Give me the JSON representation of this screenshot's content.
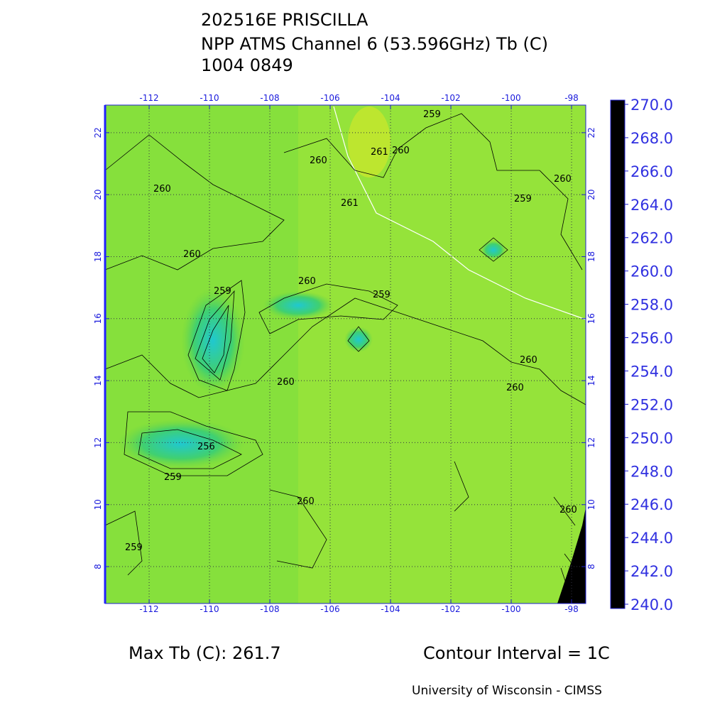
{
  "title": [
    "202516E PRISCILLA",
    "NPP ATMS Channel 6 (53.596GHz) Tb (C)",
    "1004 0849"
  ],
  "map": {
    "xlim": [
      -113.46,
      -97.53
    ],
    "ylim": [
      6.81,
      22.89
    ],
    "xticks": [
      -112,
      -110,
      -108,
      -106,
      -104,
      -102,
      -100,
      -98
    ],
    "yticks": [
      8,
      10,
      12,
      14,
      16,
      18,
      20,
      22
    ],
    "grid": true,
    "contour_labels": [
      "259",
      "261",
      "260",
      "260",
      "260",
      "261",
      "259",
      "260",
      "260",
      "259",
      "260",
      "259",
      "260",
      "260",
      "260",
      "256",
      "259",
      "260",
      "260",
      "259"
    ]
  },
  "colorbar": {
    "lim": [
      240,
      270
    ],
    "ticks": [
      {
        "value": 240,
        "label": "240.0"
      },
      {
        "value": 242,
        "label": "242.0"
      },
      {
        "value": 244,
        "label": "244.0"
      },
      {
        "value": 246,
        "label": "246.0"
      },
      {
        "value": 248,
        "label": "248.0"
      },
      {
        "value": 250,
        "label": "250.0"
      },
      {
        "value": 252,
        "label": "252.0"
      },
      {
        "value": 254,
        "label": "254.0"
      },
      {
        "value": 256,
        "label": "256.0"
      },
      {
        "value": 258,
        "label": "258.0"
      },
      {
        "value": 260,
        "label": "260.0"
      },
      {
        "value": 262,
        "label": "262.0"
      },
      {
        "value": 264,
        "label": "264.0"
      },
      {
        "value": 266,
        "label": "266.0"
      },
      {
        "value": 268,
        "label": "268.0"
      },
      {
        "value": 270,
        "label": "270.0"
      }
    ],
    "color_stops": [
      {
        "value": 240,
        "color": "#000000"
      },
      {
        "value": 243,
        "color": "#3a0060"
      },
      {
        "value": 246,
        "color": "#3a00c8"
      },
      {
        "value": 249,
        "color": "#0040ff"
      },
      {
        "value": 252,
        "color": "#00e8ff"
      },
      {
        "value": 255,
        "color": "#00e070"
      },
      {
        "value": 258,
        "color": "#30d030"
      },
      {
        "value": 260,
        "color": "#90e030"
      },
      {
        "value": 262,
        "color": "#f0e800"
      },
      {
        "value": 266,
        "color": "#ff8000"
      },
      {
        "value": 270,
        "color": "#ff0000"
      }
    ]
  },
  "footer": {
    "max_tb": "Max Tb (C): 261.7",
    "contour_interval": "Contour Interval = 1C",
    "credit": "University of Wisconsin - CIMSS"
  }
}
